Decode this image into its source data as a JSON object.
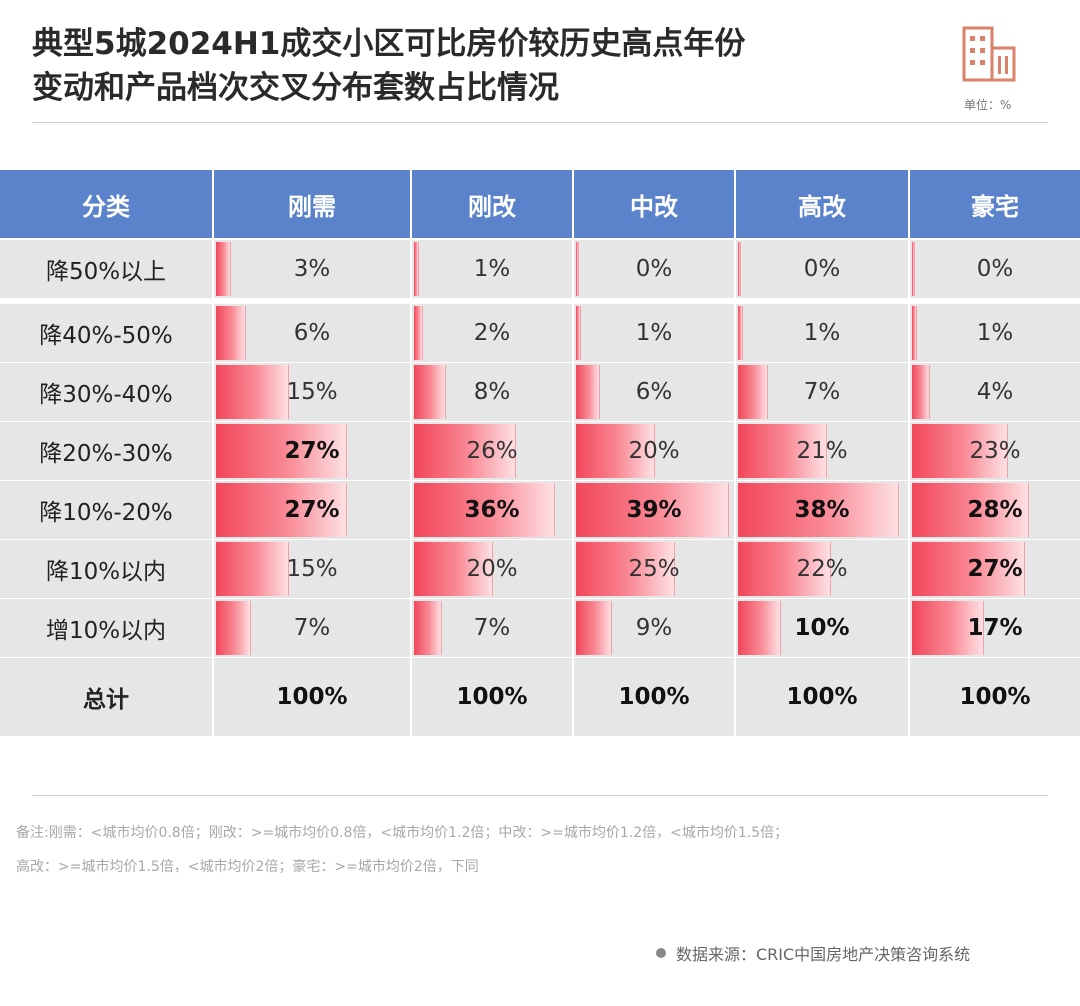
{
  "title_line1": "典型5城2024H1成交小区可比房价较历史高点年份",
  "title_line2": "变动和产品档次交叉分布套数占比情况",
  "unit": "单位：%",
  "colors": {
    "header": "#5a83cc",
    "bar": "#f2465a",
    "cell": "#e6e6e6"
  },
  "chart_data": {
    "type": "table",
    "title": "典型5城2024H1成交小区可比房价较历史高点年份变动和产品档次交叉分布套数占比情况",
    "unit": "%",
    "header_label": "分类",
    "columns": [
      "刚需",
      "刚改",
      "中改",
      "高改",
      "豪宅"
    ],
    "rows": [
      "降50%以上",
      "降40%-50%",
      "降30%-40%",
      "降20%-30%",
      "降10%-20%",
      "降10%以内",
      "增10%以内"
    ],
    "values": [
      [
        3,
        1,
        0,
        0,
        0
      ],
      [
        6,
        2,
        1,
        1,
        1
      ],
      [
        15,
        8,
        6,
        7,
        4
      ],
      [
        27,
        26,
        20,
        21,
        23
      ],
      [
        27,
        36,
        39,
        38,
        28
      ],
      [
        15,
        20,
        25,
        22,
        27
      ],
      [
        7,
        7,
        9,
        10,
        17
      ]
    ],
    "highlight_bold": [
      [
        false,
        false,
        false,
        false,
        false
      ],
      [
        false,
        false,
        false,
        false,
        false
      ],
      [
        false,
        false,
        false,
        false,
        false
      ],
      [
        true,
        false,
        false,
        false,
        false
      ],
      [
        true,
        true,
        true,
        true,
        true
      ],
      [
        false,
        false,
        false,
        false,
        true
      ],
      [
        false,
        false,
        false,
        true,
        true
      ]
    ],
    "total_label": "总计",
    "totals": [
      "100%",
      "100%",
      "100%",
      "100%",
      "100%"
    ],
    "bar_max": 40
  },
  "note_line1": "备注:刚需：<城市均价0.8倍；刚改：>=城市均价0.8倍，<城市均价1.2倍；中改：>=城市均价1.2倍，<城市均价1.5倍；",
  "note_line2": "高改：>=城市均价1.5倍，<城市均价2倍；豪宅：>=城市均价2倍，下同",
  "source": "数据来源：CRIC中国房地产决策咨询系统"
}
